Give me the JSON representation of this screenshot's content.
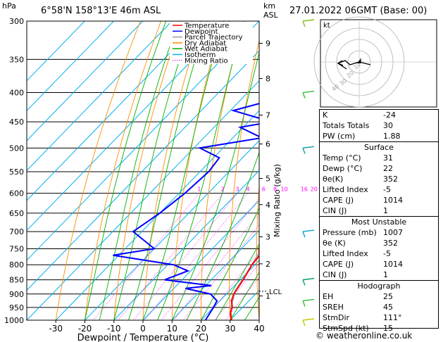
{
  "header": {
    "left_units": "hPa",
    "location": "6°58'N 158°13'E 46m ASL",
    "right_units_line1": "km",
    "right_units_line2": "ASL",
    "datetime": "27.01.2022 06GMT (Base: 00)"
  },
  "chart_data": {
    "type": "skew-t",
    "xlabel": "Dewpoint / Temperature (°C)",
    "ylabel_right": "Mixing Ratio (g/kg)",
    "pressure_levels": [
      300,
      350,
      400,
      450,
      500,
      550,
      600,
      650,
      700,
      750,
      800,
      850,
      900,
      950,
      1000
    ],
    "pressure_range": [
      300,
      1000
    ],
    "temp_ticks": [
      -30,
      -20,
      -10,
      0,
      10,
      20,
      30,
      40
    ],
    "temp_range": [
      -40,
      40
    ],
    "km_ticks": [
      {
        "label": "1",
        "p": 907
      },
      {
        "label": "2",
        "p": 797
      },
      {
        "label": "3",
        "p": 715
      },
      {
        "label": "4",
        "p": 628
      },
      {
        "label": "5",
        "p": 565
      },
      {
        "label": "6",
        "p": 492
      },
      {
        "label": "7",
        "p": 438
      },
      {
        "label": "8",
        "p": 378
      },
      {
        "label": "9",
        "p": 328
      }
    ],
    "lcl": {
      "label": "LCL",
      "p": 890
    },
    "mixing_ratio_labels": [
      "1",
      "2",
      "3",
      "4",
      "6",
      "8",
      "10",
      "16",
      "20",
      "25"
    ],
    "mixing_ratio_values": [
      1,
      2,
      3,
      4,
      6,
      8,
      10,
      16,
      20,
      25
    ],
    "legend": [
      {
        "name": "Temperature",
        "color": "#ff0000"
      },
      {
        "name": "Dewpoint",
        "color": "#0000ff"
      },
      {
        "name": "Parcel Trajectory",
        "color": "#a0a0a0"
      },
      {
        "name": "Dry Adiabat",
        "color": "#ff8c00"
      },
      {
        "name": "Wet Adiabat",
        "color": "#00b000"
      },
      {
        "name": "Isotherm",
        "color": "#00b0f0"
      },
      {
        "name": "Mixing Ratio",
        "color": "#ff00ff"
      }
    ],
    "temperature": [
      {
        "p": 1000,
        "t": 30.5
      },
      {
        "p": 970,
        "t": 27.5
      },
      {
        "p": 950,
        "t": 26.5
      },
      {
        "p": 925,
        "t": 24.0
      },
      {
        "p": 900,
        "t": 22.5
      },
      {
        "p": 850,
        "t": 21.0
      },
      {
        "p": 800,
        "t": 19.0
      },
      {
        "p": 770,
        "t": 18.5
      },
      {
        "p": 750,
        "t": 16.0
      },
      {
        "p": 700,
        "t": 12.5
      },
      {
        "p": 650,
        "t": 8.5
      },
      {
        "p": 600,
        "t": 4.5
      },
      {
        "p": 550,
        "t": 0.5
      },
      {
        "p": 500,
        "t": -4.5
      },
      {
        "p": 450,
        "t": -9.0
      },
      {
        "p": 420,
        "t": -11.5
      },
      {
        "p": 400,
        "t": -15.0
      },
      {
        "p": 370,
        "t": -19.0
      },
      {
        "p": 350,
        "t": -22.0
      }
    ],
    "dewpoint": [
      {
        "p": 1000,
        "t": 21.5
      },
      {
        "p": 950,
        "t": 20.0
      },
      {
        "p": 925,
        "t": 19.0
      },
      {
        "p": 900,
        "t": 14.5
      },
      {
        "p": 880,
        "t": 4.0
      },
      {
        "p": 870,
        "t": 12.0
      },
      {
        "p": 860,
        "t": 3.0
      },
      {
        "p": 850,
        "t": -6.0
      },
      {
        "p": 820,
        "t": -1.0
      },
      {
        "p": 800,
        "t": -8.0
      },
      {
        "p": 770,
        "t": -32.0
      },
      {
        "p": 750,
        "t": -20.0
      },
      {
        "p": 700,
        "t": -33.0
      },
      {
        "p": 650,
        "t": -30.0
      },
      {
        "p": 600,
        "t": -28.0
      },
      {
        "p": 550,
        "t": -27.0
      },
      {
        "p": 520,
        "t": -28.0
      },
      {
        "p": 500,
        "t": -38.0
      },
      {
        "p": 480,
        "t": -20.0
      },
      {
        "p": 460,
        "t": -31.0
      },
      {
        "p": 450,
        "t": -22.0
      },
      {
        "p": 430,
        "t": -39.0
      },
      {
        "p": 400,
        "t": -22.0
      },
      {
        "p": 390,
        "t": -38.0
      },
      {
        "p": 350,
        "t": -40.0
      },
      {
        "p": 330,
        "t": -24.0
      },
      {
        "p": 300,
        "t": -21.0
      }
    ],
    "parcel": [
      {
        "p": 1000,
        "t": 30.5
      },
      {
        "p": 950,
        "t": 26.0
      },
      {
        "p": 890,
        "t": 22.0
      },
      {
        "p": 850,
        "t": 20.8
      },
      {
        "p": 800,
        "t": 19.0
      },
      {
        "p": 750,
        "t": 17.0
      },
      {
        "p": 700,
        "t": 14.5
      },
      {
        "p": 650,
        "t": 11.5
      },
      {
        "p": 600,
        "t": 8.0
      },
      {
        "p": 550,
        "t": 4.5
      },
      {
        "p": 500,
        "t": 0.5
      },
      {
        "p": 450,
        "t": -4.0
      },
      {
        "p": 400,
        "t": -9.5
      },
      {
        "p": 350,
        "t": -16.0
      }
    ],
    "wind_barbs": [
      {
        "p": 300,
        "color": "#7fc31c"
      },
      {
        "p": 400,
        "color": "#2fbf2f"
      },
      {
        "p": 500,
        "color": "#00a0a0"
      },
      {
        "p": 700,
        "color": "#00a0d0"
      },
      {
        "p": 850,
        "color": "#00a070"
      },
      {
        "p": 925,
        "color": "#2fbf2f"
      },
      {
        "p": 1000,
        "color": "#c8c800"
      }
    ]
  },
  "hodograph": {
    "unit_label": "kt",
    "ring_labels": [
      "10",
      "20",
      "30",
      "40"
    ]
  },
  "indices": {
    "rows": [
      {
        "key": "K",
        "value": "-24"
      },
      {
        "key": "Totals Totals",
        "value": "30"
      },
      {
        "key": "PW (cm)",
        "value": "1.88"
      }
    ],
    "surface": {
      "title": "Surface",
      "rows": [
        {
          "key": "Temp (°C)",
          "value": "31"
        },
        {
          "key": "Dewp (°C)",
          "value": "22"
        },
        {
          "key": "θe(K)",
          "value": "352"
        },
        {
          "key": "Lifted Index",
          "value": "-5"
        },
        {
          "key": "CAPE (J)",
          "value": "1014"
        },
        {
          "key": "CIN (J)",
          "value": "1"
        }
      ]
    },
    "most_unstable": {
      "title": "Most Unstable",
      "rows": [
        {
          "key": "Pressure (mb)",
          "value": "1007"
        },
        {
          "key": "θe (K)",
          "value": "352"
        },
        {
          "key": "Lifted Index",
          "value": "-5"
        },
        {
          "key": "CAPE (J)",
          "value": "1014"
        },
        {
          "key": "CIN (J)",
          "value": "1"
        }
      ]
    },
    "hodograph_block": {
      "title": "Hodograph",
      "rows": [
        {
          "key": "EH",
          "value": "25"
        },
        {
          "key": "SREH",
          "value": "45"
        },
        {
          "key": "StmDir",
          "value": "111°"
        },
        {
          "key": "StmSpd (kt)",
          "value": "15"
        }
      ]
    }
  },
  "footer": "© weatheronline.co.uk"
}
